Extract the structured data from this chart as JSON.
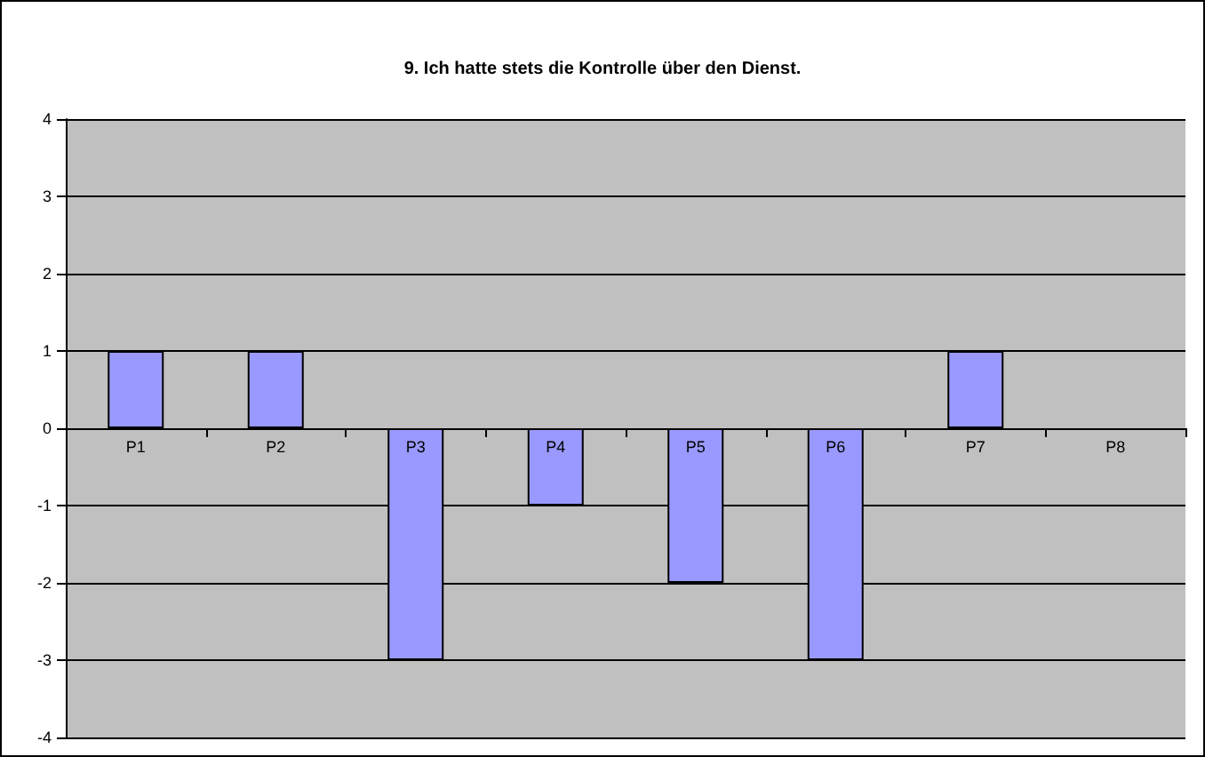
{
  "chart_data": {
    "type": "bar",
    "title": "9. Ich hatte stets die Kontrolle über den Dienst.",
    "categories": [
      "P1",
      "P2",
      "P3",
      "P4",
      "P5",
      "P6",
      "P7",
      "P8"
    ],
    "values": [
      1,
      1,
      -3,
      -1,
      -2,
      -3,
      1,
      0
    ],
    "color": "#9999ff",
    "ylim": [
      -4,
      4
    ],
    "yticks": [
      -4,
      -3,
      -2,
      -1,
      0,
      1,
      2,
      3,
      4
    ],
    "grid": "y"
  }
}
